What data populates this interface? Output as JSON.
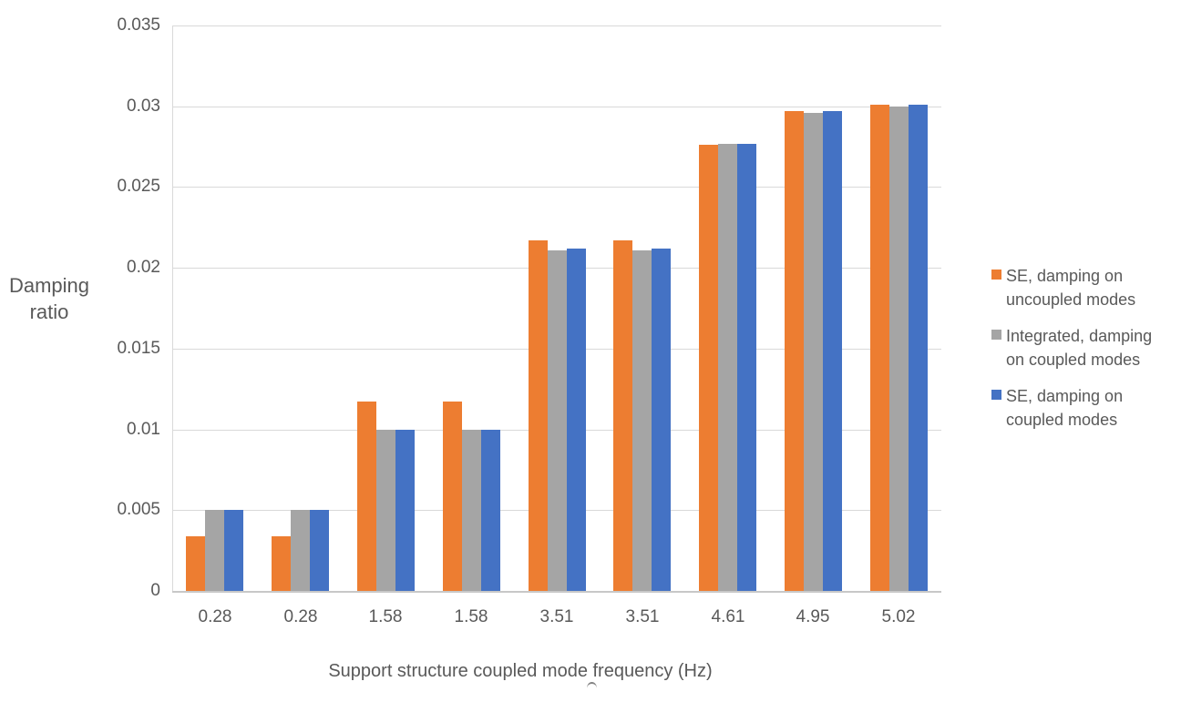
{
  "page": {
    "background": "#FFFFFF",
    "text_color": "#595959"
  },
  "chart_data": {
    "type": "bar",
    "title": "",
    "xlabel": "Support structure coupled mode frequency (Hz)",
    "ylabel": "Damping ratio",
    "ylim": [
      0,
      0.035
    ],
    "y_ticks": [
      0,
      0.005,
      0.01,
      0.015,
      0.02,
      0.025,
      0.03,
      0.035
    ],
    "y_tick_labels": [
      "0",
      "0.005",
      "0.01",
      "0.015",
      "0.02",
      "0.025",
      "0.03",
      "0.035"
    ],
    "categories": [
      "0.28",
      "0.28",
      "1.58",
      "1.58",
      "3.51",
      "3.51",
      "4.61",
      "4.95",
      "5.02"
    ],
    "series": [
      {
        "name": "SE, damping on uncoupled modes",
        "legend_lines": [
          "SE, damping on",
          "uncoupled modes"
        ],
        "color": "#ED7D31",
        "values": [
          0.0034,
          0.0034,
          0.0117,
          0.0117,
          0.0217,
          0.0217,
          0.0276,
          0.0297,
          0.0301
        ]
      },
      {
        "name": "Integrated, damping on coupled modes",
        "legend_lines": [
          "Integrated, damping",
          "on coupled modes"
        ],
        "color": "#A5A5A5",
        "values": [
          0.005,
          0.005,
          0.01,
          0.01,
          0.0211,
          0.0211,
          0.0277,
          0.0296,
          0.03
        ]
      },
      {
        "name": "SE, damping on coupled modes",
        "legend_lines": [
          "SE, damping on",
          "coupled modes"
        ],
        "color": "#4472C4",
        "values": [
          0.005,
          0.005,
          0.01,
          0.01,
          0.0212,
          0.0212,
          0.0277,
          0.0297,
          0.0301
        ]
      }
    ],
    "legend_position": "right",
    "grid": true,
    "colors": {
      "gridline": "#D9D9D9",
      "axis_line": "#C8C8C8"
    }
  }
}
